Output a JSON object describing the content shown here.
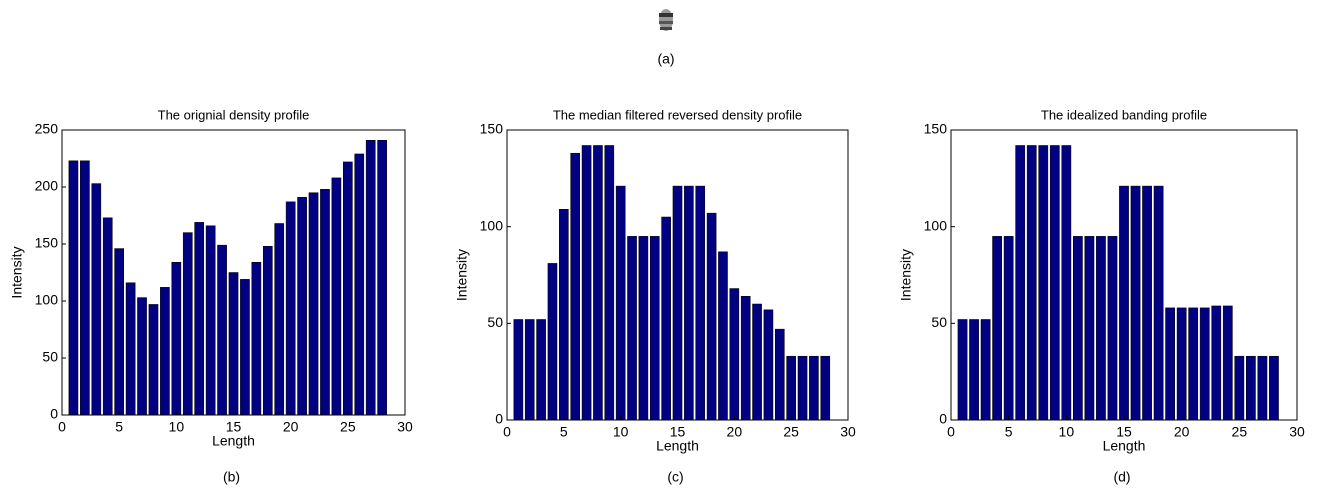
{
  "panel_a": {
    "caption": "(a)"
  },
  "chart_data": [
    {
      "type": "bar",
      "title": "The orignial density profile",
      "xlabel": "Length",
      "ylabel": "Intensity",
      "caption": "(b)",
      "x": [
        1,
        2,
        3,
        4,
        5,
        6,
        7,
        8,
        9,
        10,
        11,
        12,
        13,
        14,
        15,
        16,
        17,
        18,
        19,
        20,
        21,
        22,
        23,
        24,
        25,
        26,
        27,
        28
      ],
      "values": [
        223,
        223,
        203,
        173,
        146,
        116,
        103,
        97,
        112,
        134,
        160,
        169,
        166,
        149,
        125,
        119,
        134,
        148,
        168,
        187,
        191,
        195,
        198,
        208,
        222,
        229,
        241,
        241
      ],
      "color": "#000080",
      "xlim": [
        0,
        30
      ],
      "ylim": [
        0,
        250
      ],
      "xticks": [
        0,
        5,
        10,
        15,
        20,
        25,
        30
      ],
      "yticks": [
        0,
        50,
        100,
        150,
        200,
        250
      ]
    },
    {
      "type": "bar",
      "title": "The median filtered reversed density profile",
      "xlabel": "Length",
      "ylabel": "Intensity",
      "caption": "(c)",
      "x": [
        1,
        2,
        3,
        4,
        5,
        6,
        7,
        8,
        9,
        10,
        11,
        12,
        13,
        14,
        15,
        16,
        17,
        18,
        19,
        20,
        21,
        22,
        23,
        24,
        25,
        26,
        27,
        28
      ],
      "values": [
        52,
        52,
        52,
        81,
        109,
        138,
        142,
        142,
        142,
        121,
        95,
        95,
        95,
        105,
        121,
        121,
        121,
        107,
        87,
        68,
        64,
        60,
        57,
        47,
        33,
        33,
        33,
        33
      ],
      "color": "#000080",
      "xlim": [
        0,
        30
      ],
      "ylim": [
        0,
        150
      ],
      "xticks": [
        0,
        5,
        10,
        15,
        20,
        25,
        30
      ],
      "yticks": [
        0,
        50,
        100,
        150
      ]
    },
    {
      "type": "bar",
      "title": "The idealized banding profile",
      "xlabel": "Length",
      "ylabel": "Intensity",
      "caption": "(d)",
      "x": [
        1,
        2,
        3,
        4,
        5,
        6,
        7,
        8,
        9,
        10,
        11,
        12,
        13,
        14,
        15,
        16,
        17,
        18,
        19,
        20,
        21,
        22,
        23,
        24,
        25,
        26,
        27,
        28
      ],
      "values": [
        52,
        52,
        52,
        95,
        95,
        142,
        142,
        142,
        142,
        142,
        95,
        95,
        95,
        95,
        121,
        121,
        121,
        121,
        58,
        58,
        58,
        58,
        59,
        59,
        33,
        33,
        33,
        33
      ],
      "color": "#000080",
      "xlim": [
        0,
        30
      ],
      "ylim": [
        0,
        150
      ],
      "xticks": [
        0,
        5,
        10,
        15,
        20,
        25,
        30
      ],
      "yticks": [
        0,
        50,
        100,
        150
      ]
    }
  ]
}
